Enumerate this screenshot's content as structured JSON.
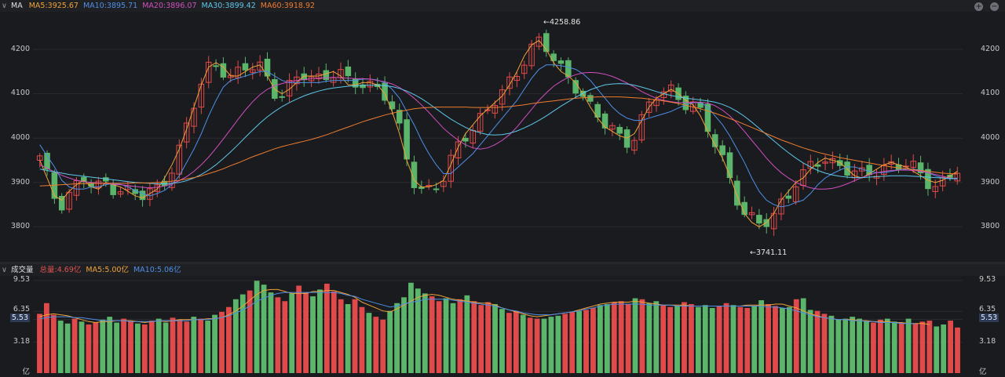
{
  "main_header": {
    "toggle": "∨",
    "name": "MA",
    "items": [
      {
        "text": "MA5:3925.67",
        "color": "#f0a23a"
      },
      {
        "text": "MA10:3895.71",
        "color": "#4e8fe6"
      },
      {
        "text": "MA20:3896.07",
        "color": "#d04fbf"
      },
      {
        "text": "MA30:3899.42",
        "color": "#5ec7e8"
      },
      {
        "text": "MA60:3918.92",
        "color": "#ef7d2f"
      }
    ]
  },
  "vol_header": {
    "toggle": "∨",
    "name": "成交量",
    "items": [
      {
        "text": "总量:4.69亿",
        "color": "#e05252"
      },
      {
        "text": "MA5:5.00亿",
        "color": "#f0a23a"
      },
      {
        "text": "MA10:5.06亿",
        "color": "#4e8fe6"
      }
    ]
  },
  "controls": {
    "plus": "+",
    "minus": "−"
  },
  "price_axis": {
    "labels": [
      "4200",
      "4100",
      "4000",
      "3900",
      "3800"
    ]
  },
  "volume_axis": {
    "labels": [
      "9.53",
      "6.35",
      "5.53",
      "3.18"
    ],
    "unit": "亿"
  },
  "annotations": {
    "high": "←4258.86",
    "low": "←3741.11"
  },
  "colors": {
    "up": "#e04a4a",
    "down": "#5bb56a",
    "background": "#1a1b1f",
    "grid": "#2a2b30"
  },
  "chart_data": [
    {
      "type": "candlestick",
      "title": "",
      "y_axis": {
        "ticks": [
          4200,
          4100,
          4000,
          3900,
          3800
        ],
        "range": [
          3740,
          4280
        ]
      },
      "annotations": [
        {
          "label": "4258.86",
          "value": 4258.86
        },
        {
          "label": "3741.11",
          "value": 3741.11
        }
      ],
      "series": [
        {
          "name": "MA5",
          "color": "#f0a23a",
          "values": [
            3950,
            3910,
            3870,
            3860,
            3880,
            3895,
            3905,
            3890,
            3885,
            3900,
            3895,
            3890,
            3880,
            3870,
            3865,
            3875,
            3885,
            3910,
            3940,
            3975,
            4020,
            4070,
            4120,
            4160,
            4170,
            4160,
            4140,
            4140,
            4150,
            4160,
            4165,
            4140,
            4110,
            4100,
            4110,
            4125,
            4140,
            4140,
            4140,
            4145,
            4150,
            4140,
            4120,
            4120,
            4125,
            4125,
            4120,
            4100,
            4060,
            4010,
            3950,
            3905,
            3890,
            3890,
            3895,
            3905,
            3940,
            3980,
            4010,
            4030,
            4050,
            4065,
            4080,
            4095,
            4120,
            4150,
            4185,
            4210,
            4220,
            4200,
            4170,
            4150,
            4140,
            4125,
            4100,
            4070,
            4045,
            4025,
            4015,
            4005,
            4000,
            4010,
            4040,
            4070,
            4090,
            4100,
            4110,
            4100,
            4085,
            4075,
            4050,
            4015,
            3985,
            3955,
            3915,
            3870,
            3830,
            3810,
            3800,
            3810,
            3830,
            3860,
            3880,
            3900,
            3910,
            3930,
            3945,
            3955,
            3950,
            3945,
            3930,
            3915,
            3910,
            3920,
            3930,
            3940,
            3945,
            3940,
            3935,
            3925,
            3915,
            3905,
            3900,
            3905,
            3915,
            3925
          ]
        },
        {
          "name": "MA10",
          "color": "#4e8fe6",
          "values": [
            3985,
            3960,
            3935,
            3905,
            3890,
            3885,
            3885,
            3890,
            3890,
            3895,
            3898,
            3896,
            3890,
            3882,
            3875,
            3870,
            3875,
            3882,
            3895,
            3915,
            3945,
            3975,
            4010,
            4050,
            4085,
            4115,
            4130,
            4135,
            4140,
            4145,
            4150,
            4150,
            4140,
            4130,
            4125,
            4125,
            4125,
            4125,
            4125,
            4128,
            4130,
            4130,
            4130,
            4130,
            4133,
            4133,
            4131,
            4125,
            4110,
            4090,
            4060,
            4030,
            3995,
            3965,
            3940,
            3920,
            3920,
            3935,
            3950,
            3965,
            3985,
            4005,
            4025,
            4045,
            4065,
            4085,
            4110,
            4135,
            4155,
            4165,
            4165,
            4163,
            4160,
            4155,
            4145,
            4130,
            4110,
            4090,
            4070,
            4055,
            4045,
            4040,
            4040,
            4045,
            4050,
            4055,
            4060,
            4068,
            4075,
            4080,
            4080,
            4070,
            4050,
            4030,
            4005,
            3975,
            3945,
            3910,
            3880,
            3860,
            3850,
            3845,
            3848,
            3855,
            3860,
            3875,
            3895,
            3910,
            3920,
            3928,
            3935,
            3935,
            3930,
            3925,
            3922,
            3922,
            3925,
            3928,
            3930,
            3930,
            3928,
            3922,
            3915,
            3910,
            3908,
            3910
          ]
        },
        {
          "name": "MA20",
          "color": "#d04fbf",
          "values": [
            3940,
            3932,
            3924,
            3916,
            3910,
            3905,
            3902,
            3900,
            3899,
            3898,
            3896,
            3895,
            3893,
            3891,
            3889,
            3888,
            3889,
            3892,
            3897,
            3904,
            3913,
            3925,
            3940,
            3957,
            3977,
            3998,
            4020,
            4042,
            4063,
            4082,
            4098,
            4110,
            4118,
            4123,
            4127,
            4130,
            4132,
            4134,
            4135,
            4136,
            4137,
            4136,
            4135,
            4134,
            4134,
            4133,
            4130,
            4127,
            4122,
            4114,
            4103,
            4090,
            4075,
            4058,
            4040,
            4022,
            4008,
            3995,
            3985,
            3978,
            3975,
            3978,
            3985,
            3995,
            4008,
            4025,
            4045,
            4065,
            4085,
            4102,
            4117,
            4128,
            4137,
            4143,
            4147,
            4148,
            4147,
            4144,
            4139,
            4132,
            4124,
            4115,
            4105,
            4097,
            4090,
            4085,
            4082,
            4080,
            4080,
            4081,
            4081,
            4079,
            4073,
            4063,
            4050,
            4034,
            4015,
            3995,
            3975,
            3955,
            3937,
            3922,
            3910,
            3900,
            3893,
            3888,
            3885,
            3885,
            3887,
            3891,
            3897,
            3904,
            3911,
            3917,
            3922,
            3925,
            3927,
            3928,
            3928,
            3927,
            3925,
            3922,
            3918,
            3914,
            3910,
            3908
          ]
        },
        {
          "name": "MA30",
          "color": "#5ec7e8",
          "values": [
            3930,
            3927,
            3924,
            3921,
            3918,
            3916,
            3914,
            3912,
            3910,
            3908,
            3906,
            3904,
            3902,
            3900,
            3899,
            3898,
            3897,
            3897,
            3898,
            3900,
            3904,
            3910,
            3918,
            3928,
            3940,
            3954,
            3969,
            3985,
            4002,
            4018,
            4034,
            4048,
            4060,
            4071,
            4080,
            4088,
            4095,
            4101,
            4106,
            4110,
            4113,
            4115,
            4117,
            4118,
            4119,
            4119,
            4119,
            4118,
            4116,
            4112,
            4106,
            4098,
            4089,
            4078,
            4066,
            4054,
            4043,
            4033,
            4024,
            4017,
            4012,
            4008,
            4007,
            4008,
            4011,
            4016,
            4023,
            4031,
            4040,
            4050,
            4061,
            4072,
            4082,
            4092,
            4101,
            4109,
            4115,
            4120,
            4122,
            4123,
            4122,
            4119,
            4115,
            4110,
            4105,
            4100,
            4096,
            4093,
            4090,
            4088,
            4086,
            4084,
            4081,
            4076,
            4069,
            4060,
            4049,
            4036,
            4022,
            4008,
            3994,
            3980,
            3967,
            3955,
            3944,
            3935,
            3927,
            3921,
            3917,
            3914,
            3912,
            3911,
            3911,
            3912,
            3913,
            3914,
            3915,
            3915,
            3915,
            3914,
            3913,
            3912,
            3911,
            3910,
            3909,
            3908
          ]
        },
        {
          "name": "MA60",
          "color": "#ef7d2f",
          "values": [
            3892,
            3893,
            3894,
            3895,
            3896,
            3897,
            3897,
            3898,
            3898,
            3898,
            3898,
            3898,
            3898,
            3899,
            3899,
            3899,
            3900,
            3901,
            3903,
            3905,
            3908,
            3911,
            3915,
            3920,
            3925,
            3931,
            3938,
            3944,
            3951,
            3958,
            3964,
            3970,
            3976,
            3981,
            3985,
            3989,
            3993,
            3997,
            4002,
            4007,
            4013,
            4019,
            4025,
            4031,
            4037,
            4042,
            4047,
            4052,
            4056,
            4060,
            4063,
            4066,
            4068,
            4069,
            4070,
            4070,
            4070,
            4070,
            4070,
            4069,
            4069,
            4069,
            4069,
            4070,
            4071,
            4073,
            4075,
            4078,
            4080,
            4082,
            4084,
            4086,
            4088,
            4090,
            4091,
            4092,
            4093,
            4093,
            4093,
            4093,
            4092,
            4091,
            4090,
            4088,
            4086,
            4084,
            4081,
            4078,
            4074,
            4070,
            4066,
            4061,
            4056,
            4050,
            4044,
            4038,
            4031,
            4024,
            4017,
            4010,
            4003,
            3996,
            3990,
            3984,
            3978,
            3973,
            3968,
            3964,
            3960,
            3956,
            3953,
            3950,
            3947,
            3944,
            3941,
            3938,
            3935,
            3933,
            3931,
            3929,
            3927,
            3925,
            3923,
            3921,
            3920,
            3919
          ]
        }
      ]
    },
    {
      "type": "bar",
      "title": "",
      "y_axis": {
        "ticks": [
          9.53,
          6.35,
          5.53,
          3.18
        ],
        "unit": "亿",
        "range": [
          0,
          9.6
        ]
      },
      "values": [
        6.1,
        7.2,
        6.0,
        5.4,
        5.1,
        5.6,
        5.3,
        5.0,
        5.2,
        5.5,
        5.8,
        5.2,
        5.6,
        5.3,
        5.1,
        5.0,
        5.4,
        5.6,
        5.2,
        5.7,
        5.5,
        5.3,
        5.8,
        5.6,
        5.4,
        6.0,
        6.3,
        6.8,
        7.6,
        8.1,
        8.5,
        9.5,
        9.1,
        8.3,
        7.8,
        7.4,
        8.2,
        9.0,
        8.3,
        7.9,
        8.6,
        9.2,
        8.4,
        7.6,
        7.1,
        7.6,
        6.8,
        6.2,
        5.8,
        5.5,
        6.4,
        7.2,
        7.8,
        9.3,
        8.7,
        8.2,
        7.9,
        7.4,
        7.7,
        7.2,
        7.6,
        8.0,
        7.4,
        7.0,
        7.3,
        7.1,
        6.6,
        6.2,
        6.4,
        6.0,
        5.7,
        5.6,
        5.6,
        5.8,
        5.9,
        6.1,
        6.3,
        6.4,
        6.5,
        6.7,
        7.0,
        7.1,
        7.3,
        7.4,
        7.1,
        7.7,
        7.6,
        7.2,
        7.4,
        7.0,
        6.8,
        6.9,
        7.3,
        7.1,
        6.8,
        7.0,
        6.7,
        6.9,
        7.2,
        7.0,
        6.8,
        6.7,
        6.9,
        7.5,
        7.1,
        6.9,
        6.7,
        6.8,
        7.6,
        7.7,
        6.5,
        6.4,
        6.1,
        5.9,
        5.5,
        5.6,
        5.8,
        5.6,
        5.4,
        5.2,
        5.5,
        5.6,
        5.3,
        5.2,
        5.6,
        5.1,
        5.3,
        5.4,
        4.8,
        5.0,
        5.4,
        4.69
      ],
      "ma5": [
        5.8,
        6.0,
        6.1,
        6.0,
        5.9,
        5.7,
        5.5,
        5.3,
        5.2,
        5.3,
        5.3,
        5.4,
        5.4,
        5.4,
        5.3,
        5.2,
        5.3,
        5.4,
        5.3,
        5.4,
        5.5,
        5.5,
        5.5,
        5.5,
        5.6,
        5.6,
        5.7,
        6.0,
        6.4,
        6.9,
        7.5,
        8.1,
        8.5,
        8.6,
        8.6,
        8.4,
        8.2,
        8.2,
        8.2,
        8.4,
        8.4,
        8.5,
        8.5,
        8.3,
        8.1,
        7.8,
        7.3,
        7.0,
        6.7,
        6.4,
        6.3,
        6.6,
        7.0,
        7.4,
        7.8,
        8.0,
        8.1,
        8.0,
        7.8,
        7.6,
        7.5,
        7.4,
        7.3,
        7.2,
        7.2,
        7.0,
        6.7,
        6.5,
        6.3,
        6.1,
        5.9,
        5.8,
        5.9,
        6.0,
        6.1,
        6.2,
        6.3,
        6.5,
        6.7,
        6.9,
        7.1,
        7.2,
        7.3,
        7.3,
        7.3,
        7.4,
        7.3,
        7.2,
        7.1,
        7.0,
        7.0,
        7.0,
        7.0,
        6.9,
        6.9,
        6.9,
        6.9,
        6.9,
        6.9,
        6.9,
        6.9,
        7.0,
        7.0,
        7.0,
        7.0,
        7.1,
        7.1,
        6.9,
        6.7,
        6.4,
        6.1,
        5.9,
        5.7,
        5.6,
        5.5,
        5.5,
        5.5,
        5.4,
        5.4,
        5.3,
        5.3,
        5.3,
        5.2,
        5.2,
        5.1,
        5.1,
        5.1,
        5.0
      ],
      "ma10": [
        5.6,
        5.7,
        5.8,
        5.8,
        5.8,
        5.7,
        5.7,
        5.6,
        5.5,
        5.4,
        5.4,
        5.4,
        5.4,
        5.3,
        5.3,
        5.3,
        5.3,
        5.4,
        5.4,
        5.4,
        5.4,
        5.4,
        5.5,
        5.5,
        5.5,
        5.6,
        5.7,
        5.9,
        6.2,
        6.5,
        6.9,
        7.4,
        7.7,
        8.0,
        8.2,
        8.3,
        8.3,
        8.3,
        8.3,
        8.3,
        8.3,
        8.3,
        8.3,
        8.2,
        8.0,
        7.9,
        7.6,
        7.4,
        7.2,
        7.0,
        6.8,
        6.9,
        7.1,
        7.3,
        7.4,
        7.6,
        7.6,
        7.6,
        7.6,
        7.5,
        7.4,
        7.3,
        7.2,
        7.1,
        7.0,
        6.9,
        6.7,
        6.5,
        6.4,
        6.2,
        6.1,
        6.0,
        6.0,
        6.0,
        6.1,
        6.2,
        6.3,
        6.4,
        6.6,
        6.7,
        6.9,
        7.0,
        7.1,
        7.1,
        7.1,
        7.1,
        7.1,
        7.0,
        7.0,
        7.0,
        7.0,
        6.9,
        6.9,
        6.9,
        6.9,
        6.9,
        6.9,
        6.9,
        6.9,
        6.9,
        6.9,
        6.9,
        6.9,
        6.9,
        6.8,
        6.8,
        6.7,
        6.6,
        6.4,
        6.2,
        6.0,
        5.8,
        5.7,
        5.6,
        5.5,
        5.5,
        5.4,
        5.4,
        5.3,
        5.3,
        5.2,
        5.2,
        5.2,
        5.1,
        5.1,
        5.06
      ]
    }
  ]
}
